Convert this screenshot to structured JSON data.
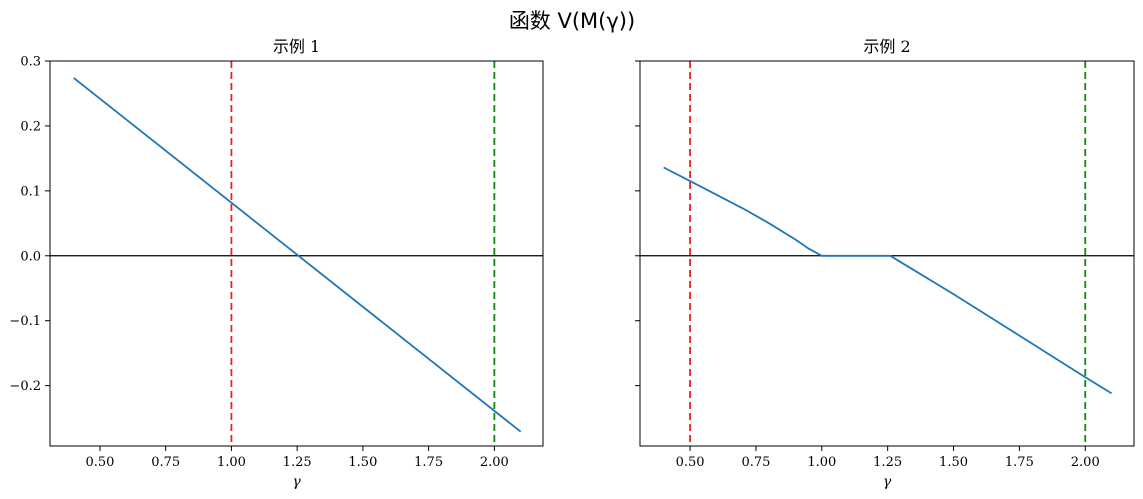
{
  "title": "函数 V(M(γ))",
  "colors": {
    "line": "#1f77b4",
    "red_line": "#e8251d",
    "green_line": "#0c8a0c",
    "zero_line": "#000000"
  },
  "chart_data": [
    {
      "type": "line",
      "title": "示例 1",
      "xlabel": "γ",
      "ylabel": "",
      "xlim": [
        0.31,
        2.185
      ],
      "ylim": [
        -0.293,
        0.3
      ],
      "xticks": [
        0.5,
        0.75,
        1.0,
        1.25,
        1.5,
        1.75,
        2.0
      ],
      "xtick_labels": [
        "0.50",
        "0.75",
        "1.00",
        "1.25",
        "1.50",
        "1.75",
        "2.00"
      ],
      "yticks": [
        0.3,
        0.2,
        0.1,
        0.0,
        -0.1,
        -0.2
      ],
      "ytick_labels": [
        "0.3",
        "0.2",
        "0.1",
        "0.0",
        "−0.1",
        "−0.2"
      ],
      "show_yticklabels": true,
      "series": [
        {
          "x": [
            0.4,
            2.1
          ],
          "y": [
            0.274,
            -0.271
          ]
        }
      ],
      "hlines": [
        {
          "y": 0.0,
          "color": "#000000",
          "style": "solid"
        }
      ],
      "vlines": [
        {
          "x": 1.0,
          "color": "#e8251d",
          "style": "dashed"
        },
        {
          "x": 2.0,
          "color": "#0c8a0c",
          "style": "dashed"
        }
      ]
    },
    {
      "type": "line",
      "title": "示例 2",
      "xlabel": "γ",
      "ylabel": "",
      "xlim": [
        0.31,
        2.185
      ],
      "ylim": [
        -0.293,
        0.3
      ],
      "xticks": [
        0.5,
        0.75,
        1.0,
        1.25,
        1.5,
        1.75,
        2.0
      ],
      "xtick_labels": [
        "0.50",
        "0.75",
        "1.00",
        "1.25",
        "1.50",
        "1.75",
        "2.00"
      ],
      "yticks": [
        0.3,
        0.2,
        0.1,
        0.0,
        -0.1,
        -0.2
      ],
      "ytick_labels": [
        "0.3",
        "0.2",
        "0.1",
        "0.0",
        "−0.1",
        "−0.2"
      ],
      "show_yticklabels": false,
      "series": [
        {
          "x": [
            0.4,
            0.5,
            0.6,
            0.7,
            0.8,
            0.9,
            0.95,
            1.0,
            1.26,
            1.5,
            1.75,
            2.0,
            2.1
          ],
          "y": [
            0.136,
            0.115,
            0.094,
            0.073,
            0.05,
            0.025,
            0.011,
            0.0,
            0.0,
            -0.059,
            -0.123,
            -0.187,
            -0.212
          ]
        }
      ],
      "hlines": [
        {
          "y": 0.0,
          "color": "#000000",
          "style": "solid"
        }
      ],
      "vlines": [
        {
          "x": 0.5,
          "color": "#e8251d",
          "style": "dashed"
        },
        {
          "x": 2.0,
          "color": "#0c8a0c",
          "style": "dashed"
        }
      ]
    }
  ]
}
